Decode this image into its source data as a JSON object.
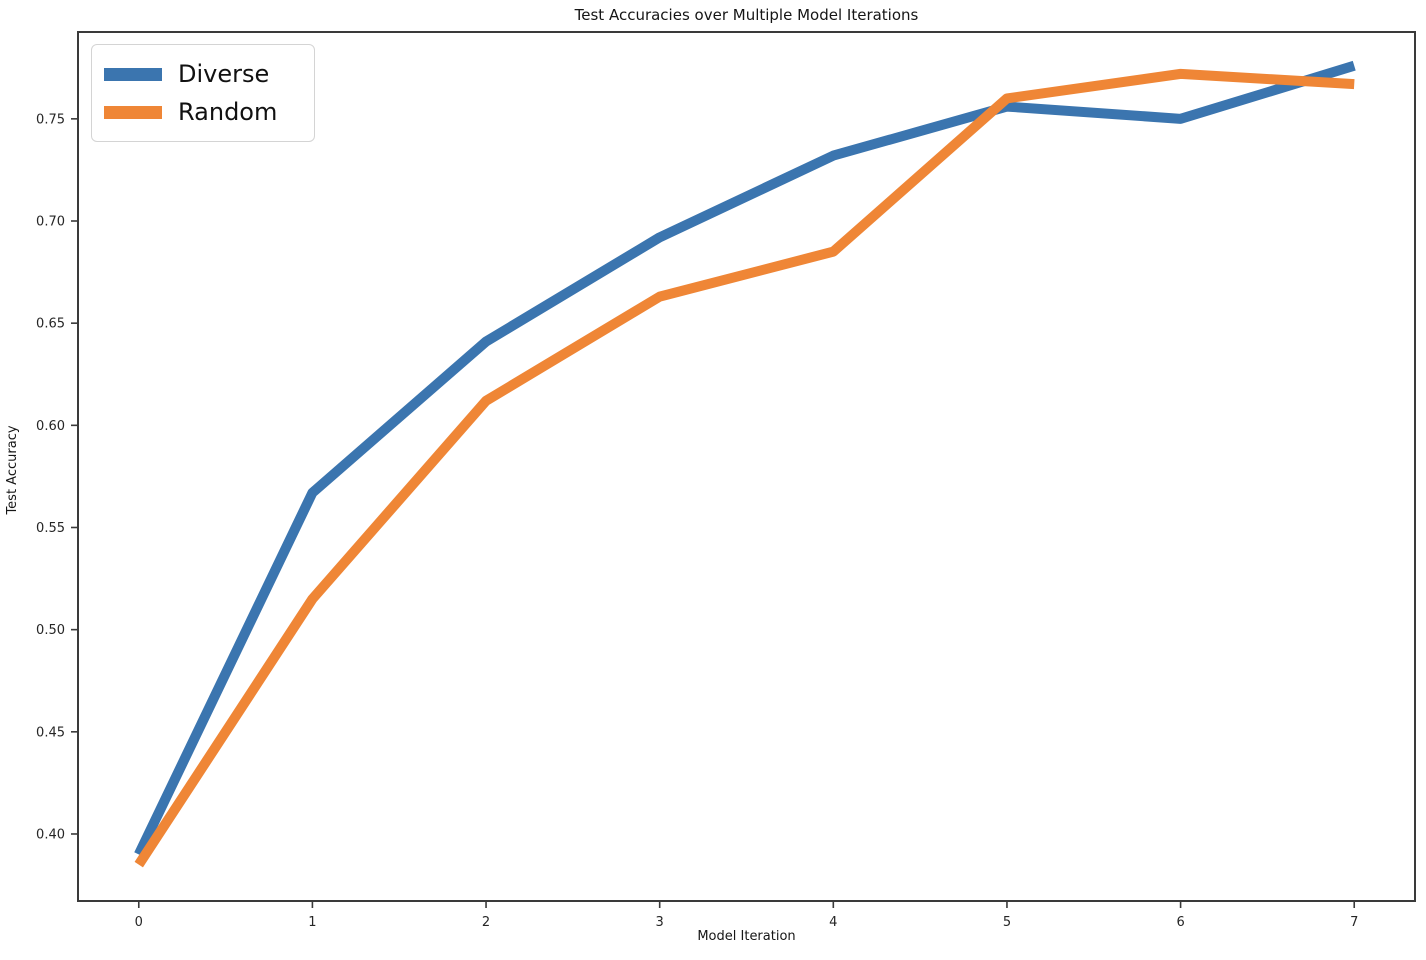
{
  "colors": {
    "background": "#ffffff",
    "axis_spine": "#3a3a3a",
    "tick_text": "#262626",
    "title_text": "#161616",
    "legend_border": "#d4d4d4",
    "series_diverse": "#3B75AF",
    "series_random": "#EF8636"
  },
  "legend": {
    "items": [
      {
        "label": "Diverse",
        "color": "#3B75AF"
      },
      {
        "label": "Random",
        "color": "#EF8636"
      }
    ]
  },
  "chart_data": {
    "type": "line",
    "title": "Test Accuracies over Multiple Model Iterations",
    "xlabel": "Model Iteration",
    "ylabel": "Test Accuracy",
    "x": [
      0,
      1,
      2,
      3,
      4,
      5,
      6,
      7
    ],
    "series": [
      {
        "name": "Diverse",
        "color": "#3B75AF",
        "values": [
          0.39,
          0.567,
          0.641,
          0.692,
          0.732,
          0.756,
          0.75,
          0.776
        ]
      },
      {
        "name": "Random",
        "color": "#EF8636",
        "values": [
          0.385,
          0.515,
          0.612,
          0.663,
          0.685,
          0.76,
          0.772,
          0.767
        ]
      }
    ],
    "xlim": [
      -0.35,
      7.35
    ],
    "ylim": [
      0.3672,
      0.7925
    ],
    "xticks": [
      0,
      1,
      2,
      3,
      4,
      5,
      6,
      7
    ],
    "xtick_labels": [
      "0",
      "1",
      "2",
      "3",
      "4",
      "5",
      "6",
      "7"
    ],
    "yticks": [
      0.4,
      0.45,
      0.5,
      0.55,
      0.6,
      0.65,
      0.7,
      0.75
    ],
    "ytick_labels": [
      "0.40",
      "0.45",
      "0.50",
      "0.55",
      "0.60",
      "0.65",
      "0.70",
      "0.75"
    ],
    "grid": false,
    "legend_position": "upper left",
    "line_width": 10
  }
}
